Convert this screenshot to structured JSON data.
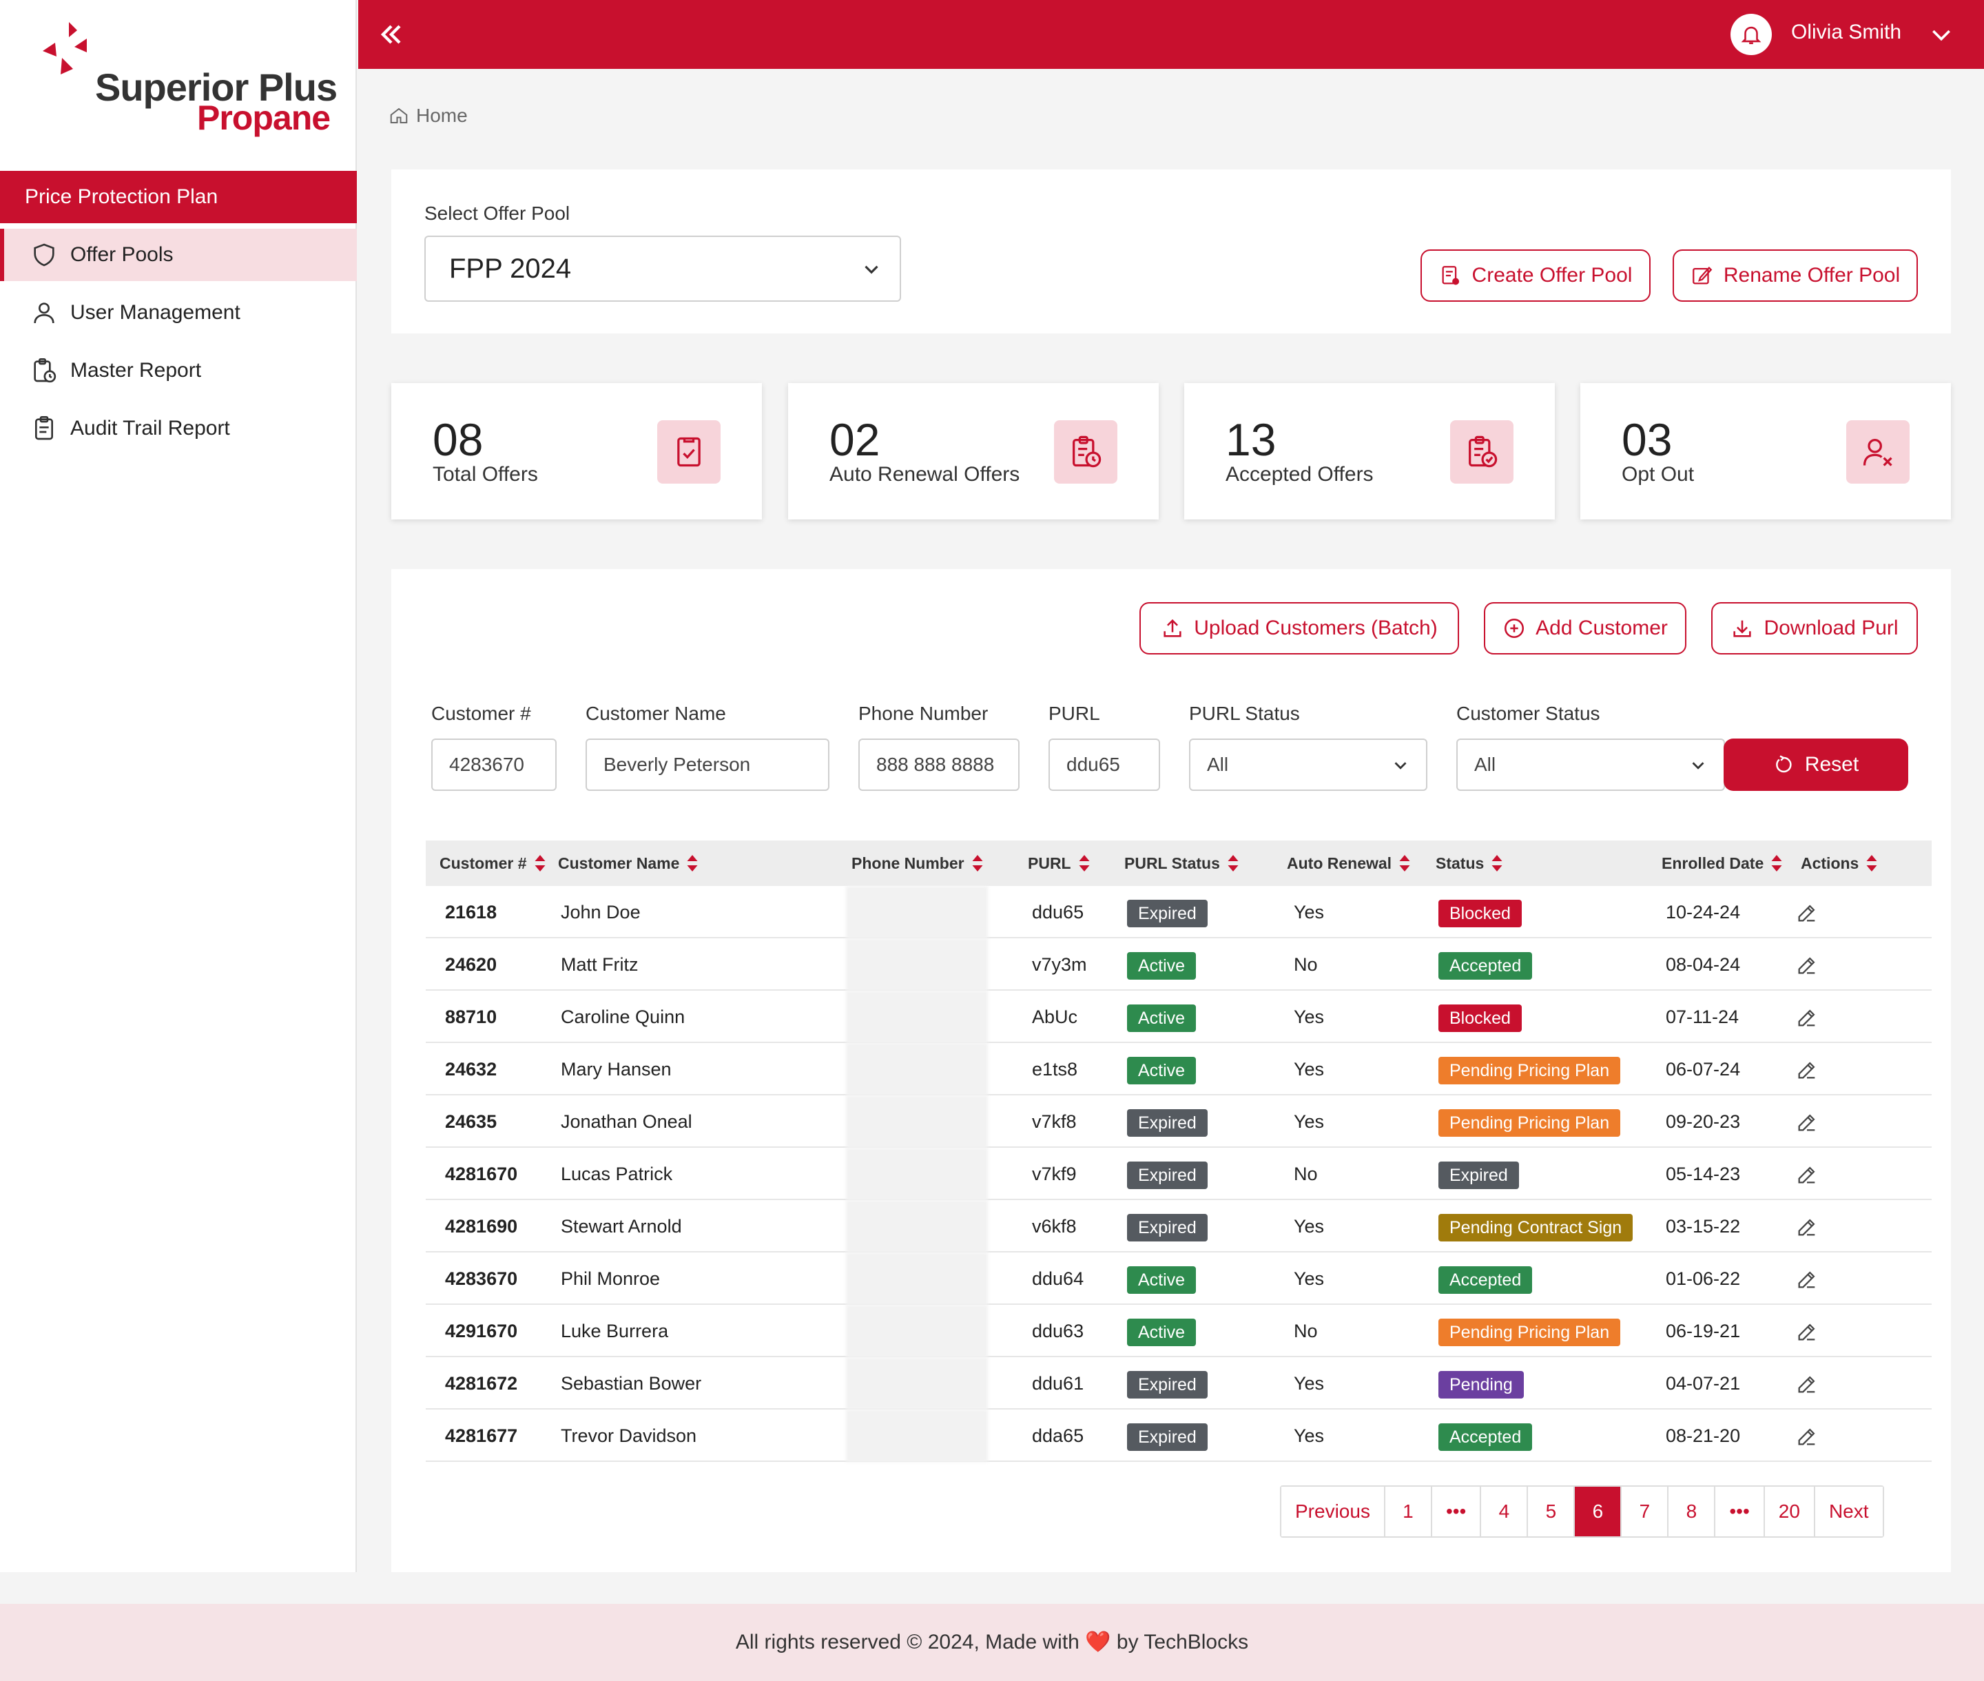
{
  "brand": {
    "line1": "Superior Plus",
    "line2": "Propane",
    "accent": "#c8102e"
  },
  "sidebar": {
    "section_title": "Price Protection Plan",
    "items": [
      {
        "label": "Offer Pools",
        "icon": "shield-icon",
        "active": true
      },
      {
        "label": "User Management",
        "icon": "user-icon",
        "active": false
      },
      {
        "label": "Master Report",
        "icon": "clipboard-clock-icon",
        "active": false
      },
      {
        "label": "Audit Trail Report",
        "icon": "clipboard-icon",
        "active": false
      }
    ]
  },
  "topbar": {
    "user_name": "Olivia Smith"
  },
  "breadcrumb": {
    "home": "Home"
  },
  "pool": {
    "label": "Select Offer Pool",
    "selected": "FPP 2024",
    "create_label": "Create Offer Pool",
    "rename_label": "Rename Offer Pool"
  },
  "stats": [
    {
      "value": "08",
      "label": "Total Offers"
    },
    {
      "value": "02",
      "label": "Auto Renewal Offers"
    },
    {
      "value": "13",
      "label": "Accepted Offers"
    },
    {
      "value": "03",
      "label": "Opt Out"
    }
  ],
  "actions": {
    "upload_label": "Upload Customers (Batch)",
    "add_label": "Add Customer",
    "download_label": "Download Purl"
  },
  "filters": {
    "customer_num": {
      "label": "Customer #",
      "value": "4283670"
    },
    "customer_name": {
      "label": "Customer Name",
      "value": "Beverly Peterson"
    },
    "phone": {
      "label": "Phone Number",
      "value": "888 888 8888"
    },
    "purl": {
      "label": "PURL",
      "value": "ddu65"
    },
    "purl_status": {
      "label": "PURL Status",
      "value": "All"
    },
    "customer_status": {
      "label": "Customer Status",
      "value": "All"
    },
    "reset_label": "Reset"
  },
  "table": {
    "headers": [
      "Customer #",
      "Customer Name",
      "Phone Number",
      "PURL",
      "PURL Status",
      "Auto Renewal",
      "Status",
      "Enrolled Date",
      "Actions"
    ],
    "rows": [
      {
        "num": "21618",
        "name": "John Doe",
        "purl": "ddu65",
        "purl_status": "Expired",
        "auto": "Yes",
        "status": "Blocked",
        "date": "10-24-24"
      },
      {
        "num": "24620",
        "name": "Matt Fritz",
        "purl": "v7y3m",
        "purl_status": "Active",
        "auto": "No",
        "status": "Accepted",
        "date": "08-04-24"
      },
      {
        "num": "88710",
        "name": "Caroline Quinn",
        "purl": "AbUc",
        "purl_status": "Active",
        "auto": "Yes",
        "status": "Blocked",
        "date": "07-11-24"
      },
      {
        "num": "24632",
        "name": "Mary Hansen",
        "purl": "e1ts8",
        "purl_status": "Active",
        "auto": "Yes",
        "status": "Pending Pricing Plan",
        "date": "06-07-24"
      },
      {
        "num": "24635",
        "name": "Jonathan Oneal",
        "purl": "v7kf8",
        "purl_status": "Expired",
        "auto": "Yes",
        "status": "Pending Pricing Plan",
        "date": "09-20-23"
      },
      {
        "num": "4281670",
        "name": "Lucas Patrick",
        "purl": "v7kf9",
        "purl_status": "Expired",
        "auto": "No",
        "status": "Expired",
        "date": "05-14-23"
      },
      {
        "num": "4281690",
        "name": "Stewart Arnold",
        "purl": "v6kf8",
        "purl_status": "Expired",
        "auto": "Yes",
        "status": "Pending Contract Sign",
        "date": "03-15-22"
      },
      {
        "num": "4283670",
        "name": "Phil Monroe",
        "purl": "ddu64",
        "purl_status": "Active",
        "auto": "Yes",
        "status": "Accepted",
        "date": "01-06-22"
      },
      {
        "num": "4291670",
        "name": "Luke Burrera",
        "purl": "ddu63",
        "purl_status": "Active",
        "auto": "No",
        "status": "Pending Pricing Plan",
        "date": "06-19-21"
      },
      {
        "num": "4281672",
        "name": "Sebastian Bower",
        "purl": "ddu61",
        "purl_status": "Expired",
        "auto": "Yes",
        "status": "Pending",
        "date": "04-07-21"
      },
      {
        "num": "4281677",
        "name": "Trevor Davidson",
        "purl": "dda65",
        "purl_status": "Expired",
        "auto": "Yes",
        "status": "Accepted",
        "date": "08-21-20"
      }
    ]
  },
  "status_colors": {
    "Expired": "#555a60",
    "Active": "#2e8b4e",
    "Blocked": "#c8102e",
    "Accepted": "#2e8b4e",
    "Pending Pricing Plan": "#ee7d2b",
    "Pending Contract Sign": "#a07b0c",
    "Pending": "#6b3fa0"
  },
  "pagination": {
    "previous": "Previous",
    "next": "Next",
    "pages": [
      "1",
      "•••",
      "4",
      "5",
      "6",
      "7",
      "8",
      "•••",
      "20"
    ],
    "current": "6"
  },
  "footer": {
    "text_before": "All rights reserved © 2024, Made with",
    "heart": "❤️",
    "text_after": "by TechBlocks"
  }
}
